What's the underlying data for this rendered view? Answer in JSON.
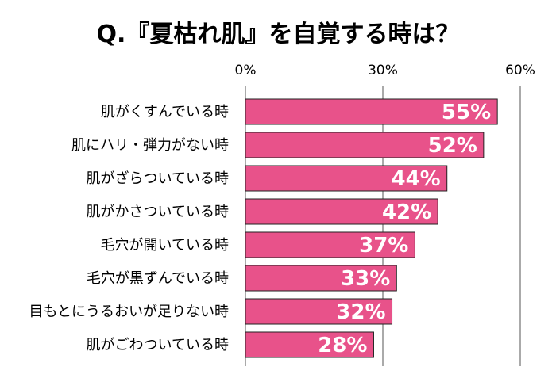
{
  "chart_data": {
    "type": "bar",
    "orientation": "horizontal",
    "title": "Q.『夏枯れ肌』を自覚する時は？",
    "categories": [
      "肌がくすんでいる時",
      "肌にハリ・弾力がない時",
      "肌がざらついている時",
      "肌がかさついている時",
      "毛穴が開いている時",
      "毛穴が黒ずんでいる時",
      "目もとにうるおいが足りない時",
      "肌がごわついている時"
    ],
    "values": [
      55,
      52,
      44,
      42,
      37,
      33,
      32,
      28
    ],
    "data_labels": [
      "55%",
      "52%",
      "44%",
      "42%",
      "37%",
      "33%",
      "32%",
      "28%"
    ],
    "x_ticks": [
      0,
      30,
      60
    ],
    "x_tick_labels": [
      "0%",
      "30%",
      "60%"
    ],
    "xlim": [
      0,
      60
    ],
    "grid": true,
    "bar_color": "#e8528a",
    "bar_border_color": "#222222"
  }
}
